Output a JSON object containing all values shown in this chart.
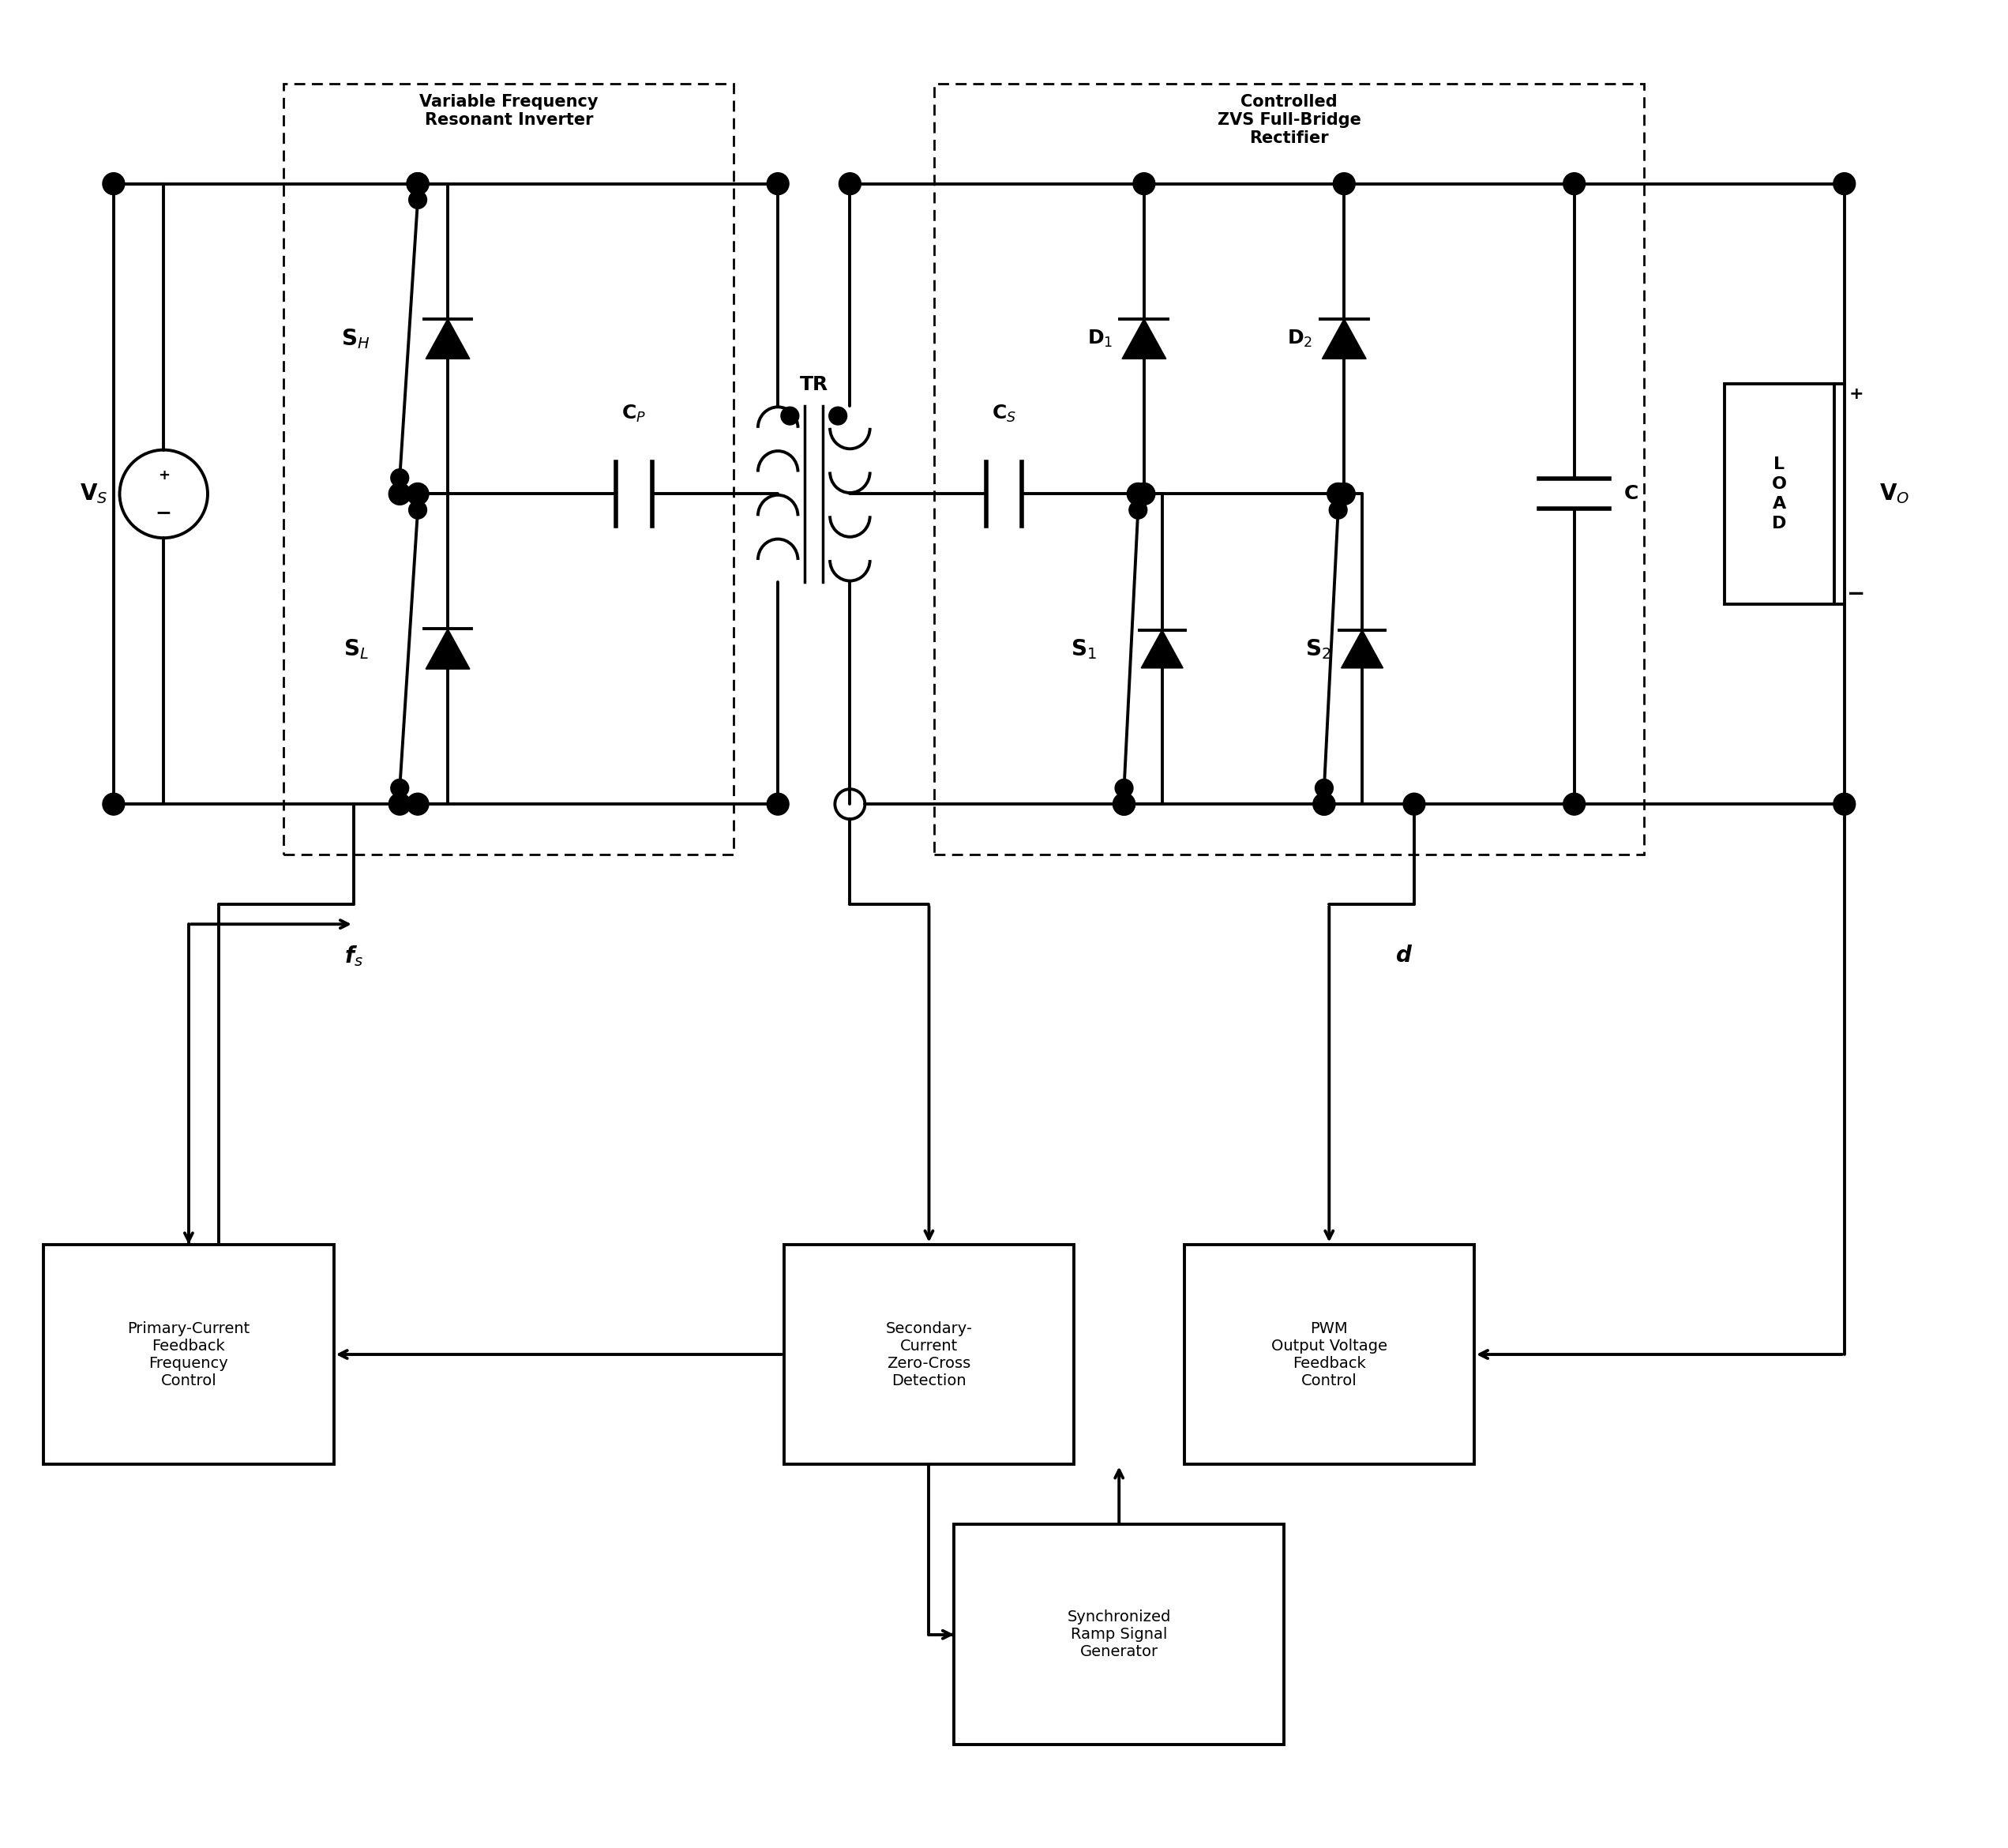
{
  "fig_width": 25.43,
  "fig_height": 23.4,
  "bg_color": "#ffffff",
  "line_color": "#000000",
  "lw": 2.8,
  "lw_thick": 4.0,
  "labels": {
    "VS": "V$_S$",
    "SH": "S$_H$",
    "SL": "S$_L$",
    "CP": "C$_P$",
    "TR": "TR",
    "CS": "C$_S$",
    "D1": "D$_1$",
    "D2": "D$_2$",
    "S1": "S$_1$",
    "S2": "S$_2$",
    "C": "C",
    "VO": "V$_O$",
    "fs": "f$_s$",
    "d": "d",
    "box1": "Primary-Current\nFeedback\nFrequency\nControl",
    "box2": "Secondary-\nCurrent\nZero-Cross\nDetection",
    "box3": "PWM\nOutput Voltage\nFeedback\nControl",
    "box4": "Synchronized\nRamp Signal\nGenerator",
    "inv_label": "Variable Frequency\nResonant Inverter",
    "rect_label": "Controlled\nZVS Full-Bridge\nRectifier"
  }
}
